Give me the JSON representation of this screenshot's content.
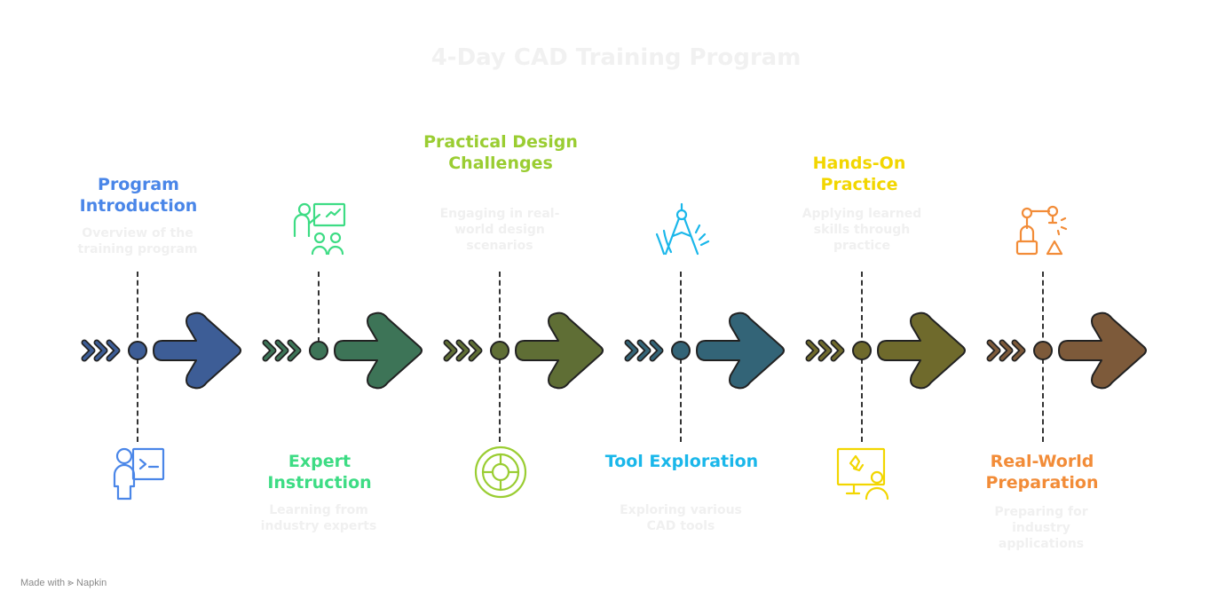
{
  "title": "4-Day CAD Training Program",
  "steps": [
    {
      "heading": "Program Introduction",
      "description": "Overview of the training program",
      "color": "#4a86e8",
      "arrow_color": "#3d5d96",
      "icon": "presenter-screen-icon"
    },
    {
      "heading": "Expert Instruction",
      "description": "Learning from industry experts",
      "color": "#3ddc84",
      "arrow_color": "#3d7457",
      "icon": "teacher-group-icon"
    },
    {
      "heading": "Practical Design Challenges",
      "description": "Engaging in real-world design scenarios",
      "color": "#9acd32",
      "arrow_color": "#5f6e35",
      "icon": "target-icon"
    },
    {
      "heading": "Tool Exploration",
      "description": "Exploring various CAD tools",
      "color": "#1ab7ea",
      "arrow_color": "#336477",
      "icon": "compass-tool-icon"
    },
    {
      "heading": "Hands-On Practice",
      "description": "Applying learned skills through practice",
      "color": "#f2d600",
      "arrow_color": "#6f6a2c",
      "icon": "whiteboard-person-icon"
    },
    {
      "heading": "Real-World Preparation",
      "description": "Preparing for industry applications",
      "color": "#f28c38",
      "arrow_color": "#7d5a3a",
      "icon": "robot-arm-icon"
    }
  ],
  "footer": {
    "made_with": "Made with",
    "brand": "Napkin"
  }
}
